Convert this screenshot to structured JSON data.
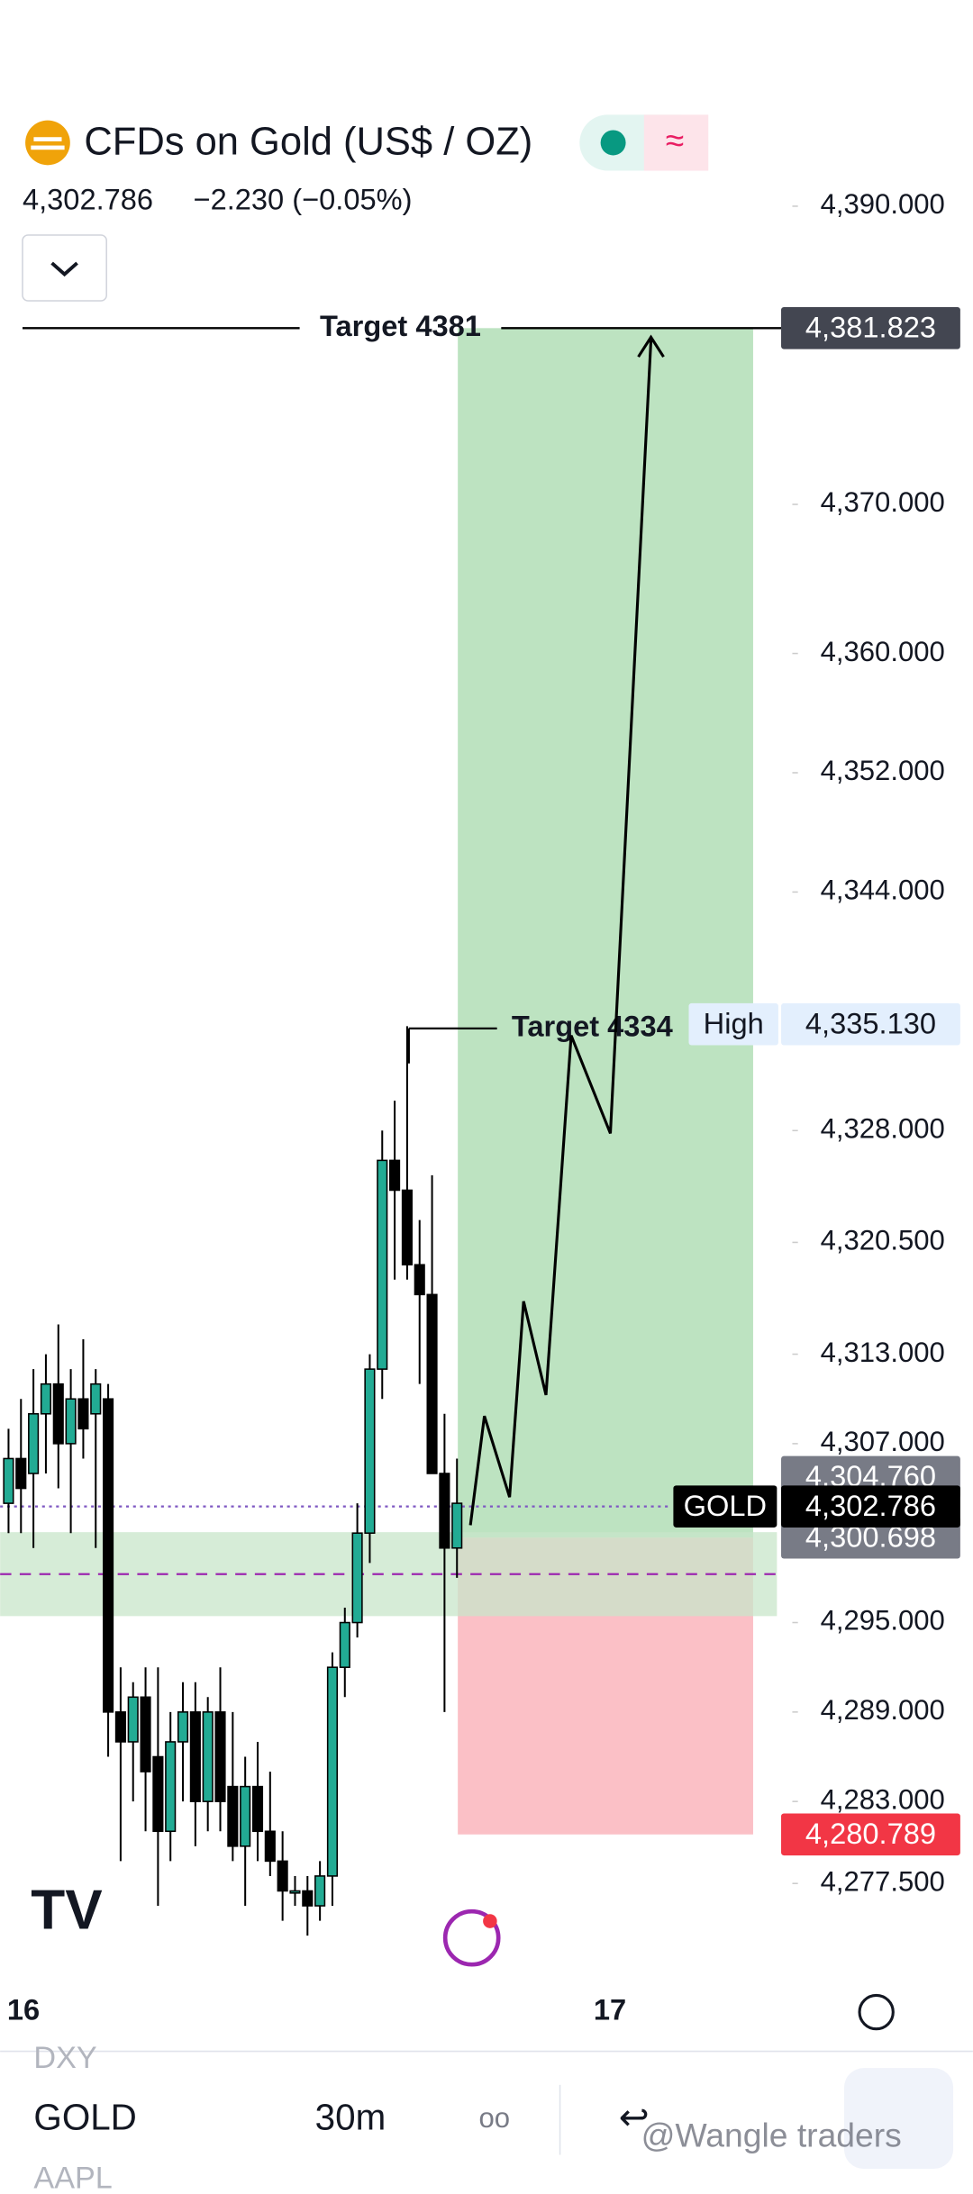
{
  "chart_data": {
    "type": "candlestick",
    "title": "CFDs on Gold (US$ / OZ)",
    "price": "4,302.786",
    "change": "−2.230 (−0.05%)",
    "ylim": [
      4271.5,
      4398.2
    ],
    "yticks": [
      {
        "value": 4390,
        "label": "4,390.000"
      },
      {
        "value": 4370,
        "label": "4,370.000"
      },
      {
        "value": 4360,
        "label": "4,360.000"
      },
      {
        "value": 4352,
        "label": "4,352.000"
      },
      {
        "value": 4344,
        "label": "4,344.000"
      },
      {
        "value": 4328,
        "label": "4,328.000"
      },
      {
        "value": 4320.5,
        "label": "4,320.500"
      },
      {
        "value": 4313,
        "label": "4,313.000"
      },
      {
        "value": 4307,
        "label": "4,307.000"
      },
      {
        "value": 4295,
        "label": "4,295.000"
      },
      {
        "value": 4289,
        "label": "4,289.000"
      },
      {
        "value": 4283,
        "label": "4,283.000"
      },
      {
        "value": 4277.5,
        "label": "4,277.500"
      }
    ],
    "open": [
      4303,
      4306,
      4305,
      4309,
      4311,
      4307,
      4310,
      4309,
      4310,
      4289,
      4287,
      4290,
      4286,
      4281,
      4287,
      4289,
      4283,
      4289,
      4284,
      4280,
      4284,
      4281,
      4279,
      4277,
      4277,
      4276,
      4278,
      4292,
      4295,
      4301,
      4312,
      4326,
      4324,
      4319,
      4317,
      4305,
      4300
    ],
    "high": [
      4308,
      4310,
      4312,
      4313,
      4315,
      4312,
      4314,
      4312,
      4311,
      4292,
      4291,
      4292,
      4292,
      4289,
      4291,
      4291,
      4290,
      4292,
      4289,
      4286,
      4287,
      4285,
      4281,
      4278,
      4278,
      4279,
      4293,
      4296,
      4303,
      4313,
      4328,
      4330,
      4335,
      4322,
      4325,
      4309,
      4306
    ],
    "low": [
      4301,
      4301,
      4300,
      4305,
      4304,
      4301,
      4306,
      4300,
      4286,
      4279,
      4283,
      4281,
      4276,
      4279,
      4283,
      4280,
      4281,
      4281,
      4279,
      4276,
      4279,
      4278,
      4275,
      4276,
      4274,
      4275,
      4276,
      4290,
      4294,
      4299,
      4310,
      4318,
      4318,
      4311,
      4306,
      4289,
      4298
    ],
    "close": [
      4306,
      4304,
      4309,
      4311,
      4307,
      4310,
      4308,
      4311,
      4289,
      4287,
      4290,
      4285,
      4281,
      4287,
      4289,
      4283,
      4289,
      4283,
      4280,
      4284,
      4281,
      4279,
      4277,
      4277,
      4276,
      4278,
      4292,
      4295,
      4301,
      4312,
      4326,
      4324,
      4319,
      4317,
      4305,
      4300,
      4303
    ],
    "up_color": "#22ab94",
    "down_color": "#000000",
    "x_labels": [
      "16",
      "17"
    ],
    "position": {
      "target": {
        "value": 4381.823,
        "label": "4,381.823"
      },
      "entry": {
        "value": 4300.698,
        "label": "4,300.698"
      },
      "stop": {
        "value": 4280.789,
        "label": "4,280.789"
      }
    },
    "high_mark": {
      "name": "High",
      "value": 4335.13,
      "label": "4,335.130"
    },
    "last": {
      "name": "GOLD",
      "value": 4302.786,
      "label": "4,302.786"
    },
    "other_level": {
      "value": 4304.76,
      "label": "4,304.760"
    },
    "annotations": [
      "Target 4381",
      "Target 4334"
    ]
  },
  "ui": {
    "watchlist": [
      "DXY",
      "GOLD",
      "AAPL"
    ],
    "interval": "30m",
    "watermark": "@Wangle traders"
  }
}
